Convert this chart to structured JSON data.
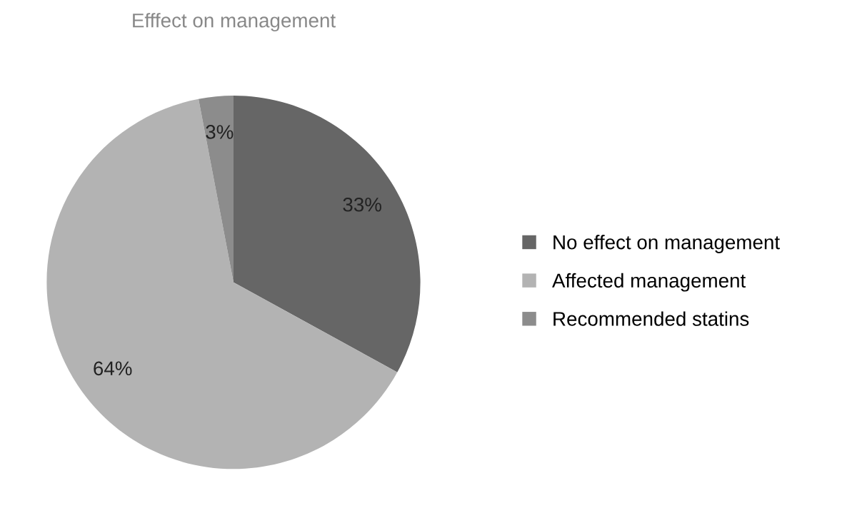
{
  "chart_data": {
    "type": "pie",
    "title": "Efffect on management",
    "categories": [
      "No effect on management",
      "Affected management",
      "Recommended statins"
    ],
    "values": [
      33,
      64,
      3
    ],
    "colors": [
      "#666666",
      "#b3b3b3",
      "#8c8c8c"
    ],
    "value_labels": [
      "33%",
      "64%",
      "3%"
    ],
    "legend": "right"
  }
}
